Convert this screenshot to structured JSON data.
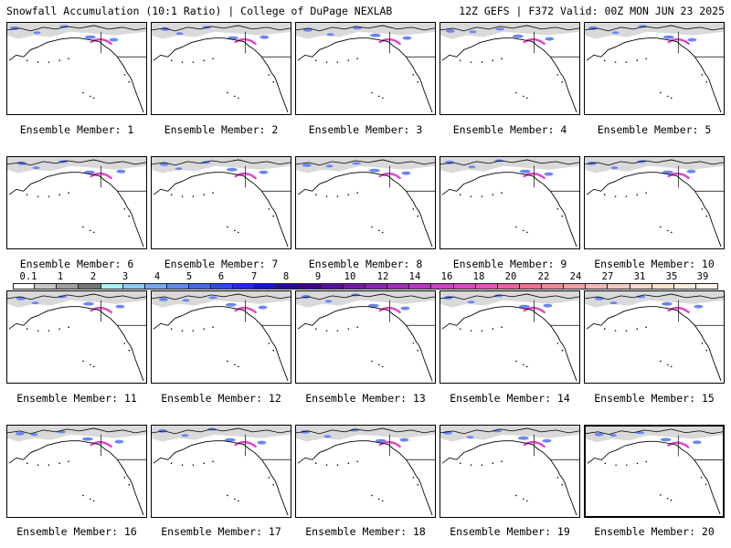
{
  "header": {
    "left": "Snowfall Accumulation (10:1 Ratio) | College of DuPage NEXLAB",
    "right": "12Z GEFS | F372 Valid: 00Z MON JUN 23 2025"
  },
  "panels": [
    {
      "label": "Ensemble Member: 1"
    },
    {
      "label": "Ensemble Member: 2"
    },
    {
      "label": "Ensemble Member: 3"
    },
    {
      "label": "Ensemble Member: 4"
    },
    {
      "label": "Ensemble Member: 5"
    },
    {
      "label": "Ensemble Member: 6"
    },
    {
      "label": "Ensemble Member: 7"
    },
    {
      "label": "Ensemble Member: 8"
    },
    {
      "label": "Ensemble Member: 9"
    },
    {
      "label": "Ensemble Member: 10"
    },
    {
      "label": "Ensemble Member: 11"
    },
    {
      "label": "Ensemble Member: 12"
    },
    {
      "label": "Ensemble Member: 13"
    },
    {
      "label": "Ensemble Member: 14"
    },
    {
      "label": "Ensemble Member: 15"
    },
    {
      "label": "Ensemble Member: 16"
    },
    {
      "label": "Ensemble Member: 17"
    },
    {
      "label": "Ensemble Member: 18"
    },
    {
      "label": "Ensemble Member: 19"
    },
    {
      "label": "Ensemble Member: 20"
    }
  ],
  "colorbar": {
    "ticks": [
      "0.1",
      "1",
      "2",
      "3",
      "4",
      "5",
      "6",
      "7",
      "8",
      "9",
      "10",
      "12",
      "14",
      "16",
      "18",
      "20",
      "22",
      "24",
      "27",
      "31",
      "35",
      "39"
    ],
    "colors": [
      "#ffffff",
      "#c8c8c8",
      "#a0a0a0",
      "#787878",
      "#a8f0f8",
      "#90c8f0",
      "#78a8f0",
      "#6088f0",
      "#4868f0",
      "#3048f0",
      "#2828e8",
      "#1818c8",
      "#2808a8",
      "#400098",
      "#5810a0",
      "#7018a8",
      "#8828b0",
      "#a030b8",
      "#b838c0",
      "#d040c8",
      "#e048c0",
      "#f050b8",
      "#f060a0",
      "#f07090",
      "#f08898",
      "#f0a0a8",
      "#f0b8b8",
      "#f0c8c0",
      "#f8d8c8",
      "#fbe4d0",
      "#fdeedc",
      "#fff6e8"
    ]
  },
  "colors": {
    "snow_light": "#d0d0d0",
    "snow_blue": "#6a86f0",
    "snow_magenta": "#e040c8",
    "coastline": "#000000",
    "border": "#000000"
  }
}
